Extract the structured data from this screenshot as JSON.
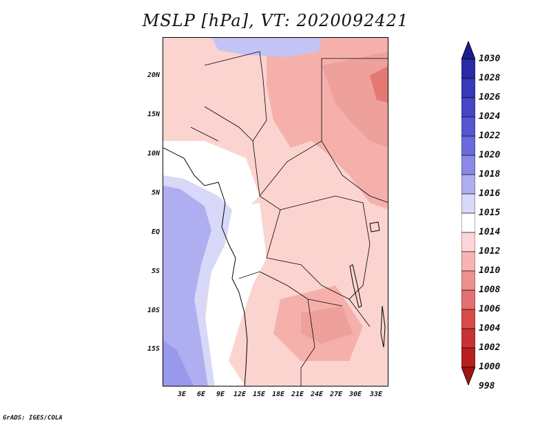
{
  "title": "MSLP [hPa], VT: 2020092421",
  "footer": "GrADS: IGES/COLA",
  "map": {
    "field": "Mean sea level pressure",
    "units": "hPa",
    "lon_range": [
      0,
      36
    ],
    "lat_range": [
      -20,
      25
    ],
    "y_axis_labels": [
      "20N",
      "15N",
      "10N",
      "5N",
      "EQ",
      "5S",
      "10S",
      "15S"
    ],
    "x_axis_labels": [
      "3E",
      "6E",
      "9E",
      "12E",
      "15E",
      "18E",
      "21E",
      "24E",
      "27E",
      "30E",
      "33E"
    ]
  },
  "colorbar": {
    "labels": [
      "1030",
      "1028",
      "1026",
      "1024",
      "1022",
      "1020",
      "1018",
      "1016",
      "1015",
      "1014",
      "1012",
      "1010",
      "1008",
      "1006",
      "1004",
      "1002",
      "1000",
      "998"
    ],
    "colors": [
      "#1c1c8c",
      "#2a2aa6",
      "#3838b8",
      "#4646c6",
      "#5656d2",
      "#6a6adc",
      "#8a8ae6",
      "#aeaef0",
      "#d8d8f8",
      "#ffffff",
      "#fcd6d6",
      "#f8b4b4",
      "#ee9090",
      "#e47070",
      "#d84a4a",
      "#c83232",
      "#b82020",
      "#a01414"
    ]
  }
}
